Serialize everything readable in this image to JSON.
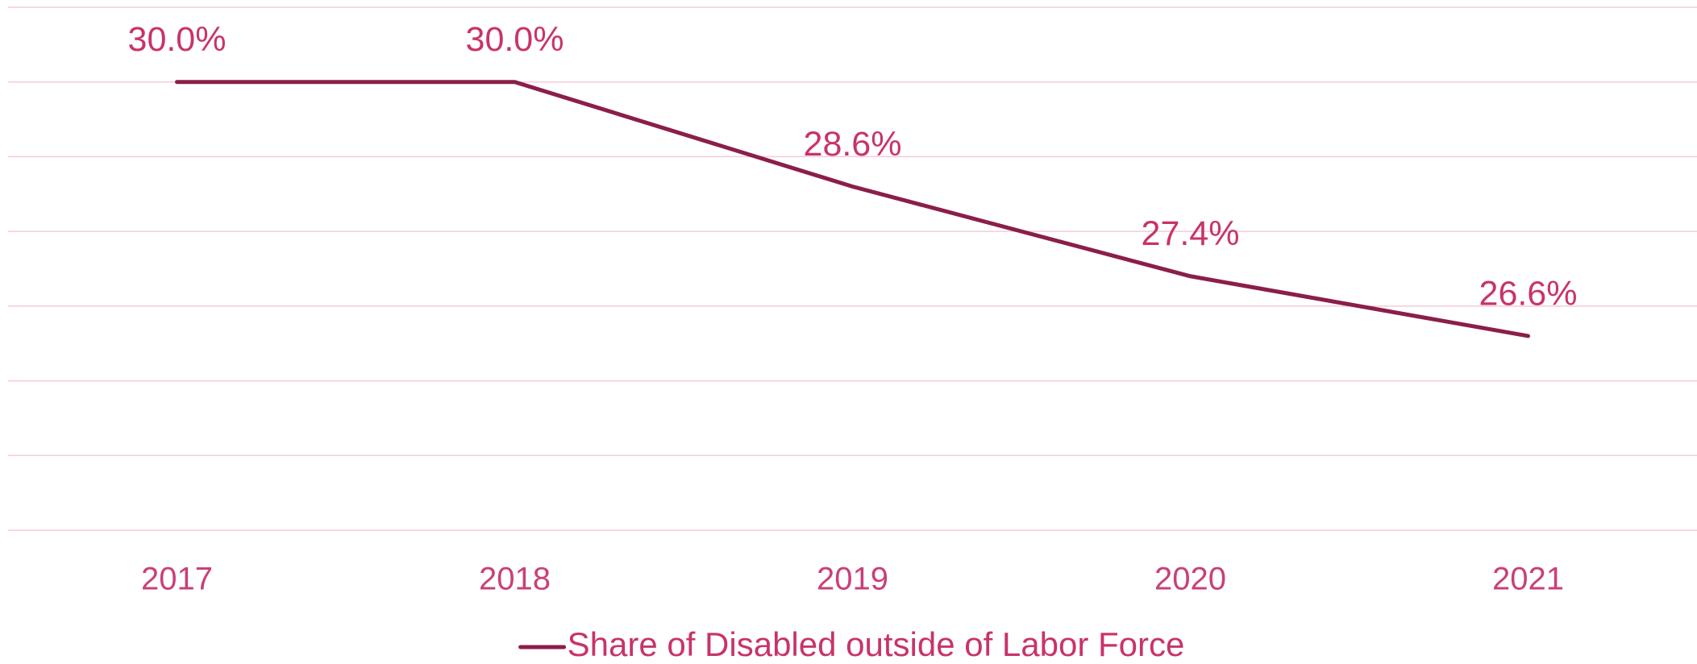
{
  "chart_data": {
    "type": "line",
    "categories": [
      "2017",
      "2018",
      "2019",
      "2020",
      "2021"
    ],
    "series": [
      {
        "name": "Share of Disabled outside of Labor Force",
        "color": "#8b1e4a",
        "values": [
          30.0,
          30.0,
          28.6,
          27.4,
          26.6
        ],
        "value_labels": [
          "30.0%",
          "30.0%",
          "28.6%",
          "27.4%",
          "26.6%"
        ]
      }
    ],
    "ylim": [
      24,
      31
    ],
    "yticks": [
      24,
      25,
      26,
      27,
      28,
      29,
      30,
      31
    ],
    "grid": true,
    "legend": "bottom"
  }
}
